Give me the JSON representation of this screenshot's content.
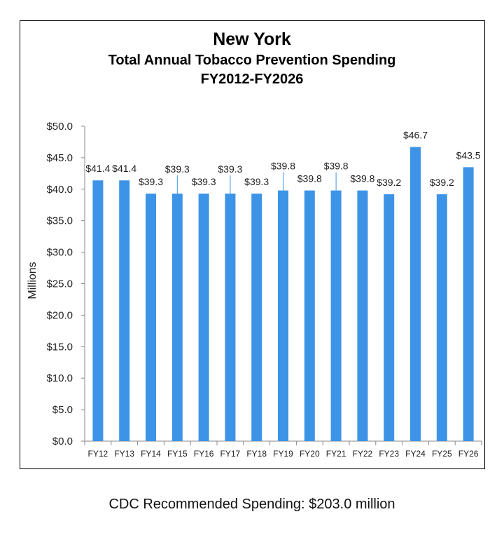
{
  "chart_data": {
    "type": "bar",
    "title": "New York",
    "subtitle": "Total Annual Tobacco Prevention Spending",
    "subtitle2": "FY2012-FY2026",
    "xlabel": "",
    "ylabel": "Millions",
    "ylim": [
      0,
      50
    ],
    "yticks": [
      "$0.0",
      "$5.0",
      "$10.0",
      "$15.0",
      "$20.0",
      "$25.0",
      "$30.0",
      "$35.0",
      "$40.0",
      "$45.0",
      "$50.0"
    ],
    "ytick_values": [
      0,
      5,
      10,
      15,
      20,
      25,
      30,
      35,
      40,
      45,
      50
    ],
    "categories": [
      "FY12",
      "FY13",
      "FY14",
      "FY15",
      "FY16",
      "FY17",
      "FY18",
      "FY19",
      "FY20",
      "FY21",
      "FY22",
      "FY23",
      "FY24",
      "FY25",
      "FY26"
    ],
    "values": [
      41.4,
      41.4,
      39.3,
      39.3,
      39.3,
      39.3,
      39.3,
      39.8,
      39.8,
      39.8,
      39.8,
      39.2,
      46.7,
      39.2,
      43.5
    ],
    "labels": [
      "$41.4",
      "$41.4",
      "$39.3",
      "$39.3",
      "$39.3",
      "$39.3",
      "$39.3",
      "$39.8",
      "$39.8",
      "$39.8",
      "$39.8",
      "$39.2",
      "$46.7",
      "$39.2",
      "$43.5"
    ],
    "grid": false,
    "bar_color": "#3d94e6"
  },
  "footer": {
    "note": "CDC Recommended Spending: $203.0 million"
  }
}
